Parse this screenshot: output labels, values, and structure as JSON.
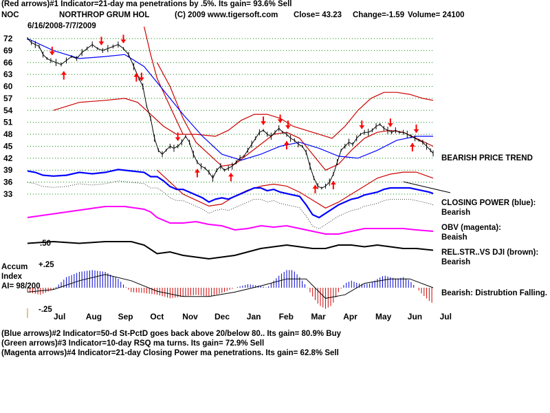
{
  "header": {
    "line1": "(Red arrows)#1 Indicator=21-day ma penetrations by .5%.  Its gain=  93.6% Sell",
    "symbol": "NOC",
    "company": "NORTHROP GRUM HOL",
    "copyright": "(C) 2009 www.tigersoft.com",
    "close": "Close=   43.23",
    "change": "Change=-1.59",
    "volume": "Volume=  24100",
    "date_range": "6/16/2008-7/7/2009"
  },
  "labels": {
    "bearish_price": "BEARISH PRICE TREND",
    "closing_power": "CLOSING POWER (blue):",
    "closing_power_status": "Bearish",
    "obv": "OBV (magenta):",
    "obv_status": "Beaish",
    "relstr": "REL.STR..VS DJI (brown):",
    "relstr_status": "Bearish",
    "accum_line1": "Accum",
    "accum_line2": "Index",
    "accum_ai": "AI= 98/200",
    "accum_status": "Bearish:  Distrubtion Falling.",
    "accum_top": "+.25",
    "accum_bottom": "-.25",
    "relstr_tick": ".50"
  },
  "footer": {
    "line2": "(Blue arrows)#2 Indicator=50-d St-PctD goes back above 20/below 80..  Its gain=  80.9% Buy",
    "line3": "(Green arrows)#3 Indicator=10-day RSQ ma turns.  Its gain=  72.9% Sell",
    "line4": "(Magenta arrows)#4 Indicator=21-day Closing Power ma penetrations.  Its gain=  62.8% Sell"
  },
  "colors": {
    "price": "#000000",
    "band": "#cc0000",
    "ma50": "#0000ff",
    "closing_power": "#0000ff",
    "obv": "#ff00ff",
    "relstr": "#000000",
    "accum_pos": "#0000cc",
    "accum_neg": "#cc0000",
    "arrow": "#ff0000",
    "grid": "#008800"
  },
  "chart_data": {
    "type": "line",
    "title": "NORTHROP GRUM HOL (NOC)",
    "date_range": "6/16/2008-7/7/2009",
    "y_ticks": [
      72,
      69,
      66,
      63,
      60,
      57,
      54,
      51,
      48,
      45,
      42,
      39,
      36,
      33
    ],
    "ylim": [
      31,
      73
    ],
    "months": [
      "Jul",
      "Aug",
      "Sep",
      "Oct",
      "Nov",
      "Dec",
      "Jan",
      "Feb",
      "Mar",
      "Apr",
      "May",
      "Jun",
      "Jul"
    ],
    "price": [
      [
        0,
        72
      ],
      [
        3,
        71
      ],
      [
        6,
        70.5
      ],
      [
        9,
        70
      ],
      [
        12,
        68
      ],
      [
        15,
        67
      ],
      [
        18,
        66.5
      ],
      [
        22,
        66
      ],
      [
        26,
        65.5
      ],
      [
        30,
        66.5
      ],
      [
        34,
        67.5
      ],
      [
        38,
        67
      ],
      [
        42,
        68.5
      ],
      [
        46,
        69.5
      ],
      [
        50,
        70.5
      ],
      [
        54,
        69.5
      ],
      [
        58,
        69
      ],
      [
        62,
        69.5
      ],
      [
        66,
        70
      ],
      [
        70,
        70.5
      ],
      [
        74,
        69.5
      ],
      [
        78,
        68
      ],
      [
        82,
        65
      ],
      [
        86,
        62
      ],
      [
        89,
        60
      ],
      [
        92,
        55
      ],
      [
        95,
        52
      ],
      [
        98,
        47
      ],
      [
        101,
        44
      ],
      [
        104,
        43
      ],
      [
        107,
        44
      ],
      [
        110,
        45
      ],
      [
        113,
        44.5
      ],
      [
        116,
        45
      ],
      [
        119,
        46
      ],
      [
        122,
        47.5
      ],
      [
        125,
        46
      ],
      [
        128,
        43
      ],
      [
        131,
        41
      ],
      [
        134,
        40
      ],
      [
        137,
        39.5
      ],
      [
        140,
        38.5
      ],
      [
        143,
        37
      ],
      [
        146,
        39
      ],
      [
        149,
        40
      ],
      [
        152,
        39
      ],
      [
        155,
        39.5
      ],
      [
        158,
        40
      ],
      [
        161,
        41
      ],
      [
        164,
        42
      ],
      [
        167,
        42.5
      ],
      [
        170,
        44
      ],
      [
        173,
        45.5
      ],
      [
        176,
        47
      ],
      [
        179,
        48.5
      ],
      [
        182,
        49
      ],
      [
        185,
        48
      ],
      [
        188,
        47.5
      ],
      [
        191,
        48.5
      ],
      [
        194,
        49.5
      ],
      [
        197,
        48.5
      ],
      [
        200,
        48
      ],
      [
        203,
        47
      ],
      [
        206,
        46.5
      ],
      [
        209,
        45.5
      ],
      [
        212,
        45
      ],
      [
        215,
        43.5
      ],
      [
        218,
        40
      ],
      [
        221,
        37
      ],
      [
        224,
        35
      ],
      [
        227,
        34.5
      ],
      [
        230,
        35
      ],
      [
        233,
        36
      ],
      [
        236,
        38
      ],
      [
        239,
        41
      ],
      [
        242,
        44
      ],
      [
        245,
        45
      ],
      [
        248,
        46
      ],
      [
        251,
        45.5
      ],
      [
        254,
        47
      ],
      [
        257,
        48
      ],
      [
        260,
        48.5
      ],
      [
        263,
        48.5
      ],
      [
        266,
        49
      ],
      [
        269,
        50
      ],
      [
        272,
        50.5
      ],
      [
        275,
        49.5
      ],
      [
        278,
        49
      ],
      [
        281,
        48.5
      ],
      [
        284,
        49
      ],
      [
        287,
        48.5
      ],
      [
        290,
        48.5
      ],
      [
        293,
        48
      ],
      [
        296,
        47.5
      ],
      [
        299,
        47
      ],
      [
        302,
        46.5
      ],
      [
        305,
        46
      ],
      [
        308,
        45
      ],
      [
        311,
        44
      ],
      [
        313,
        43.2
      ]
    ],
    "ma50": [
      [
        0,
        72
      ],
      [
        20,
        69
      ],
      [
        40,
        67
      ],
      [
        60,
        67.5
      ],
      [
        75,
        68
      ],
      [
        90,
        65
      ],
      [
        105,
        59
      ],
      [
        120,
        53
      ],
      [
        135,
        47.5
      ],
      [
        150,
        43
      ],
      [
        165,
        41.5
      ],
      [
        180,
        43
      ],
      [
        195,
        45
      ],
      [
        210,
        46
      ],
      [
        225,
        44.5
      ],
      [
        240,
        42.5
      ],
      [
        255,
        42
      ],
      [
        270,
        44
      ],
      [
        285,
        46.5
      ],
      [
        300,
        47.5
      ],
      [
        313,
        47.5
      ]
    ],
    "band_upper": [
      [
        20,
        54
      ],
      [
        40,
        56
      ],
      [
        60,
        56.5
      ],
      [
        75,
        57
      ],
      [
        85,
        56
      ],
      [
        95,
        53
      ],
      [
        105,
        50
      ],
      [
        115,
        48
      ],
      [
        130,
        48
      ],
      [
        145,
        47.5
      ],
      [
        155,
        49
      ],
      [
        165,
        51.5
      ],
      [
        175,
        53
      ],
      [
        185,
        53
      ],
      [
        195,
        52
      ],
      [
        205,
        50
      ],
      [
        215,
        49
      ],
      [
        225,
        48
      ],
      [
        235,
        47
      ],
      [
        245,
        50
      ],
      [
        255,
        54
      ],
      [
        265,
        57
      ],
      [
        275,
        58.5
      ],
      [
        285,
        58.5
      ],
      [
        295,
        58
      ],
      [
        305,
        57
      ],
      [
        313,
        56.5
      ]
    ],
    "band_mid": [
      [
        100,
        66
      ],
      [
        110,
        60
      ],
      [
        120,
        52
      ],
      [
        130,
        46
      ],
      [
        140,
        43
      ],
      [
        150,
        40
      ],
      [
        160,
        40.5
      ],
      [
        170,
        43
      ],
      [
        180,
        45.5
      ],
      [
        190,
        48
      ],
      [
        200,
        48.5
      ],
      [
        210,
        47
      ],
      [
        220,
        43
      ],
      [
        230,
        39
      ],
      [
        240,
        40.5
      ],
      [
        250,
        44
      ],
      [
        260,
        47
      ],
      [
        270,
        48.5
      ],
      [
        280,
        49
      ],
      [
        290,
        48.5
      ],
      [
        300,
        47
      ],
      [
        313,
        45
      ]
    ],
    "band_lower": [
      [
        100,
        39
      ],
      [
        110,
        36
      ],
      [
        120,
        33
      ],
      [
        130,
        31.5
      ],
      [
        140,
        30
      ],
      [
        150,
        30.5
      ],
      [
        160,
        32.5
      ],
      [
        170,
        34
      ],
      [
        180,
        35
      ],
      [
        190,
        35.5
      ],
      [
        200,
        35
      ],
      [
        210,
        33.5
      ],
      [
        220,
        31.5
      ],
      [
        230,
        29.5
      ],
      [
        240,
        31
      ],
      [
        250,
        33
      ],
      [
        260,
        35
      ],
      [
        270,
        37
      ],
      [
        280,
        38
      ],
      [
        290,
        38.5
      ],
      [
        300,
        38.5
      ],
      [
        313,
        37
      ]
    ],
    "red_line": [
      [
        90,
        75
      ],
      [
        95,
        68
      ],
      [
        100,
        62
      ],
      [
        110,
        55
      ],
      [
        120,
        48
      ]
    ],
    "buy_arrows_at": [
      28,
      84,
      131,
      157,
      200,
      222,
      236,
      297
    ],
    "sell_arrows_at": [
      19,
      57,
      74,
      88,
      116,
      182,
      195,
      201,
      258,
      280,
      300
    ],
    "closing_power": [
      [
        0,
        -4
      ],
      [
        6,
        -4.5
      ],
      [
        12,
        -5.5
      ],
      [
        20,
        -5.8
      ],
      [
        30,
        -5.5
      ],
      [
        40,
        -4.5
      ],
      [
        50,
        -5
      ],
      [
        60,
        -4.5
      ],
      [
        70,
        -3.5
      ],
      [
        80,
        -4
      ],
      [
        90,
        -4.5
      ],
      [
        95,
        -6
      ],
      [
        100,
        -6
      ],
      [
        105,
        -7.5
      ],
      [
        110,
        -9.5
      ],
      [
        115,
        -10.5
      ],
      [
        120,
        -10.5
      ],
      [
        125,
        -11.5
      ],
      [
        130,
        -12.5
      ],
      [
        135,
        -13.5
      ],
      [
        140,
        -15
      ],
      [
        145,
        -14
      ],
      [
        150,
        -13.5
      ],
      [
        155,
        -14
      ],
      [
        160,
        -13
      ],
      [
        165,
        -12
      ],
      [
        170,
        -11
      ],
      [
        175,
        -10
      ],
      [
        180,
        -10
      ],
      [
        185,
        -11
      ],
      [
        190,
        -10.5
      ],
      [
        195,
        -11.5
      ],
      [
        200,
        -12
      ],
      [
        205,
        -12.5
      ],
      [
        210,
        -13
      ],
      [
        215,
        -16
      ],
      [
        220,
        -19.5
      ],
      [
        225,
        -20.5
      ],
      [
        230,
        -19
      ],
      [
        235,
        -17.5
      ],
      [
        240,
        -16
      ],
      [
        245,
        -15
      ],
      [
        250,
        -14
      ],
      [
        255,
        -13.5
      ],
      [
        260,
        -12.5
      ],
      [
        265,
        -12
      ],
      [
        270,
        -11.5
      ],
      [
        275,
        -10.5
      ],
      [
        280,
        -10
      ],
      [
        285,
        -10
      ],
      [
        290,
        -10
      ],
      [
        295,
        -10
      ],
      [
        300,
        -10.5
      ],
      [
        305,
        -11
      ],
      [
        310,
        -11.5
      ],
      [
        313,
        -12
      ]
    ],
    "obv": [
      [
        0,
        -20
      ],
      [
        15,
        -19
      ],
      [
        30,
        -18
      ],
      [
        45,
        -17
      ],
      [
        60,
        -16
      ],
      [
        75,
        -16
      ],
      [
        90,
        -17
      ],
      [
        95,
        -18
      ],
      [
        100,
        -20
      ],
      [
        110,
        -22
      ],
      [
        120,
        -22
      ],
      [
        130,
        -21.5
      ],
      [
        140,
        -22.5
      ],
      [
        150,
        -23
      ],
      [
        160,
        -24.5
      ],
      [
        170,
        -24
      ],
      [
        180,
        -23
      ],
      [
        190,
        -23.5
      ],
      [
        200,
        -23
      ],
      [
        210,
        -24
      ],
      [
        220,
        -25
      ],
      [
        230,
        -26
      ],
      [
        240,
        -26
      ],
      [
        250,
        -25
      ],
      [
        260,
        -24
      ],
      [
        270,
        -24
      ],
      [
        280,
        -24
      ],
      [
        290,
        -24
      ],
      [
        300,
        -24.5
      ],
      [
        313,
        -25
      ]
    ],
    "relstr": [
      [
        0,
        -26.5
      ],
      [
        20,
        -26
      ],
      [
        40,
        -26.5
      ],
      [
        60,
        -26
      ],
      [
        80,
        -26
      ],
      [
        90,
        -27
      ],
      [
        100,
        -29.5
      ],
      [
        110,
        -29
      ],
      [
        120,
        -30
      ],
      [
        130,
        -30.5
      ],
      [
        140,
        -31
      ],
      [
        150,
        -30.5
      ],
      [
        160,
        -30
      ],
      [
        170,
        -29
      ],
      [
        180,
        -28
      ],
      [
        190,
        -27.5
      ],
      [
        200,
        -27
      ],
      [
        210,
        -27.5
      ],
      [
        220,
        -28
      ],
      [
        230,
        -28
      ],
      [
        240,
        -27
      ],
      [
        250,
        -27
      ],
      [
        260,
        -27.5
      ],
      [
        270,
        -27
      ],
      [
        280,
        -27.5
      ],
      [
        290,
        -28
      ],
      [
        300,
        -28
      ],
      [
        313,
        -28.5
      ]
    ],
    "accum_index": [
      [
        0,
        -0.05
      ],
      [
        10,
        -0.08
      ],
      [
        20,
        -0.02
      ],
      [
        25,
        0.05
      ],
      [
        30,
        0.12
      ],
      [
        40,
        0.18
      ],
      [
        50,
        0.2
      ],
      [
        60,
        0.18
      ],
      [
        70,
        0.1
      ],
      [
        75,
        0.02
      ],
      [
        80,
        -0.05
      ],
      [
        90,
        -0.06
      ],
      [
        100,
        -0.08
      ],
      [
        110,
        -0.12
      ],
      [
        120,
        -0.1
      ],
      [
        130,
        -0.08
      ],
      [
        140,
        -0.1
      ],
      [
        150,
        -0.06
      ],
      [
        160,
        0.0
      ],
      [
        170,
        0.04
      ],
      [
        180,
        0.02
      ],
      [
        185,
        0.0
      ],
      [
        190,
        0.08
      ],
      [
        195,
        0.15
      ],
      [
        200,
        0.2
      ],
      [
        205,
        0.2
      ],
      [
        210,
        0.12
      ],
      [
        215,
        0.02
      ],
      [
        220,
        -0.1
      ],
      [
        225,
        -0.2
      ],
      [
        230,
        -0.24
      ],
      [
        235,
        -0.2
      ],
      [
        240,
        -0.05
      ],
      [
        245,
        0.05
      ],
      [
        250,
        0.08
      ],
      [
        255,
        0.05
      ],
      [
        260,
        0.04
      ],
      [
        265,
        0.05
      ],
      [
        270,
        0.1
      ],
      [
        275,
        0.14
      ],
      [
        280,
        0.12
      ],
      [
        285,
        0.1
      ],
      [
        290,
        0.12
      ],
      [
        295,
        0.08
      ],
      [
        300,
        0.0
      ],
      [
        305,
        -0.08
      ],
      [
        310,
        -0.15
      ],
      [
        313,
        -0.18
      ]
    ],
    "accum_ma": [
      [
        0,
        -0.05
      ],
      [
        20,
        -0.02
      ],
      [
        40,
        0.08
      ],
      [
        60,
        0.15
      ],
      [
        80,
        0.08
      ],
      [
        100,
        -0.04
      ],
      [
        120,
        -0.1
      ],
      [
        140,
        -0.1
      ],
      [
        160,
        -0.05
      ],
      [
        180,
        0.02
      ],
      [
        200,
        0.1
      ],
      [
        215,
        0.1
      ],
      [
        230,
        -0.12
      ],
      [
        245,
        -0.08
      ],
      [
        260,
        0.05
      ],
      [
        280,
        0.1
      ],
      [
        295,
        0.1
      ],
      [
        313,
        0.0
      ]
    ]
  }
}
